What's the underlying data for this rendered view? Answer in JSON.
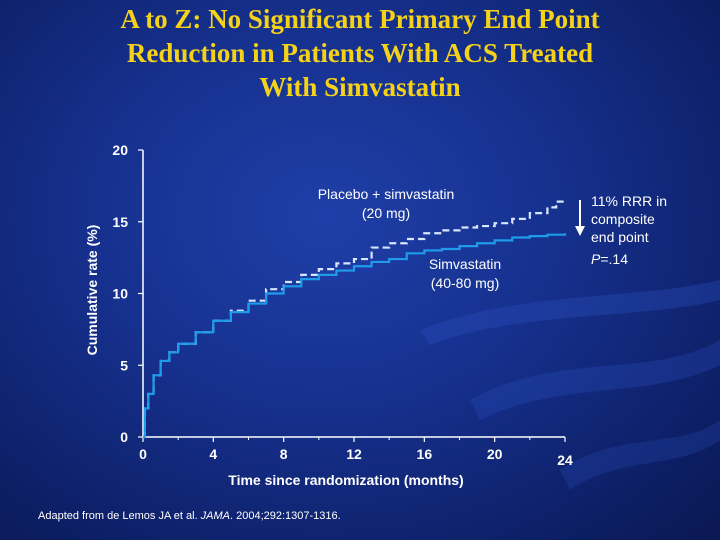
{
  "title_lines": [
    "A to Z: No Significant Primary End Point",
    "Reduction in Patients With ACS Treated",
    "With Simvastatin"
  ],
  "chart_data": {
    "type": "line",
    "xlabel": "Time since randomization (months)",
    "ylabel": "Cumulative rate (%)",
    "xlim": [
      0,
      24
    ],
    "ylim": [
      0,
      20
    ],
    "xticks": [
      0,
      4,
      8,
      12,
      16,
      20,
      24
    ],
    "yticks": [
      0,
      5,
      10,
      15,
      20
    ],
    "grid": false,
    "series": [
      {
        "name": "Placebo + simvastatin (20 mg)",
        "label_lines": [
          "Placebo + simvastatin",
          "(20 mg)"
        ],
        "style": "dashed",
        "color": "#d8e6ff",
        "x": [
          0,
          0.1,
          0.3,
          0.6,
          1,
          1.5,
          2,
          3,
          4,
          5,
          6,
          7,
          8,
          9,
          10,
          11,
          12,
          13,
          14,
          15,
          16,
          17,
          18,
          19,
          20,
          21,
          22,
          23,
          23.5,
          24
        ],
        "y": [
          0,
          2,
          3,
          4.3,
          5.3,
          5.9,
          6.5,
          7.3,
          8.1,
          8.8,
          9.5,
          10.3,
          10.8,
          11.3,
          11.7,
          12.1,
          12.4,
          13.2,
          13.5,
          13.8,
          14.2,
          14.4,
          14.6,
          14.7,
          14.9,
          15.2,
          15.6,
          16,
          16.4,
          16.4
        ]
      },
      {
        "name": "Simvastatin (40-80 mg)",
        "label_lines": [
          "Simvastatin",
          "(40-80 mg)"
        ],
        "style": "solid",
        "color": "#1e9bea",
        "x": [
          0,
          0.1,
          0.3,
          0.6,
          1,
          1.5,
          2,
          3,
          4,
          5,
          6,
          7,
          8,
          9,
          10,
          11,
          12,
          13,
          14,
          15,
          16,
          17,
          18,
          19,
          20,
          21,
          22,
          23,
          24
        ],
        "y": [
          0,
          2,
          3,
          4.3,
          5.3,
          5.9,
          6.5,
          7.3,
          8.1,
          8.7,
          9.3,
          10,
          10.5,
          11,
          11.3,
          11.6,
          11.9,
          12.2,
          12.4,
          12.8,
          13,
          13.1,
          13.3,
          13.5,
          13.7,
          13.9,
          14,
          14.1,
          14.2
        ]
      }
    ],
    "annotation": {
      "lines": [
        "11% RRR in",
        "composite",
        "end point"
      ],
      "p_label": "P",
      "p_value": "=.14"
    }
  },
  "source": {
    "prefix": "Adapted from de Lemos JA et al. ",
    "journal": "JAMA",
    "suffix": ". 2004;292:1307-1316."
  }
}
